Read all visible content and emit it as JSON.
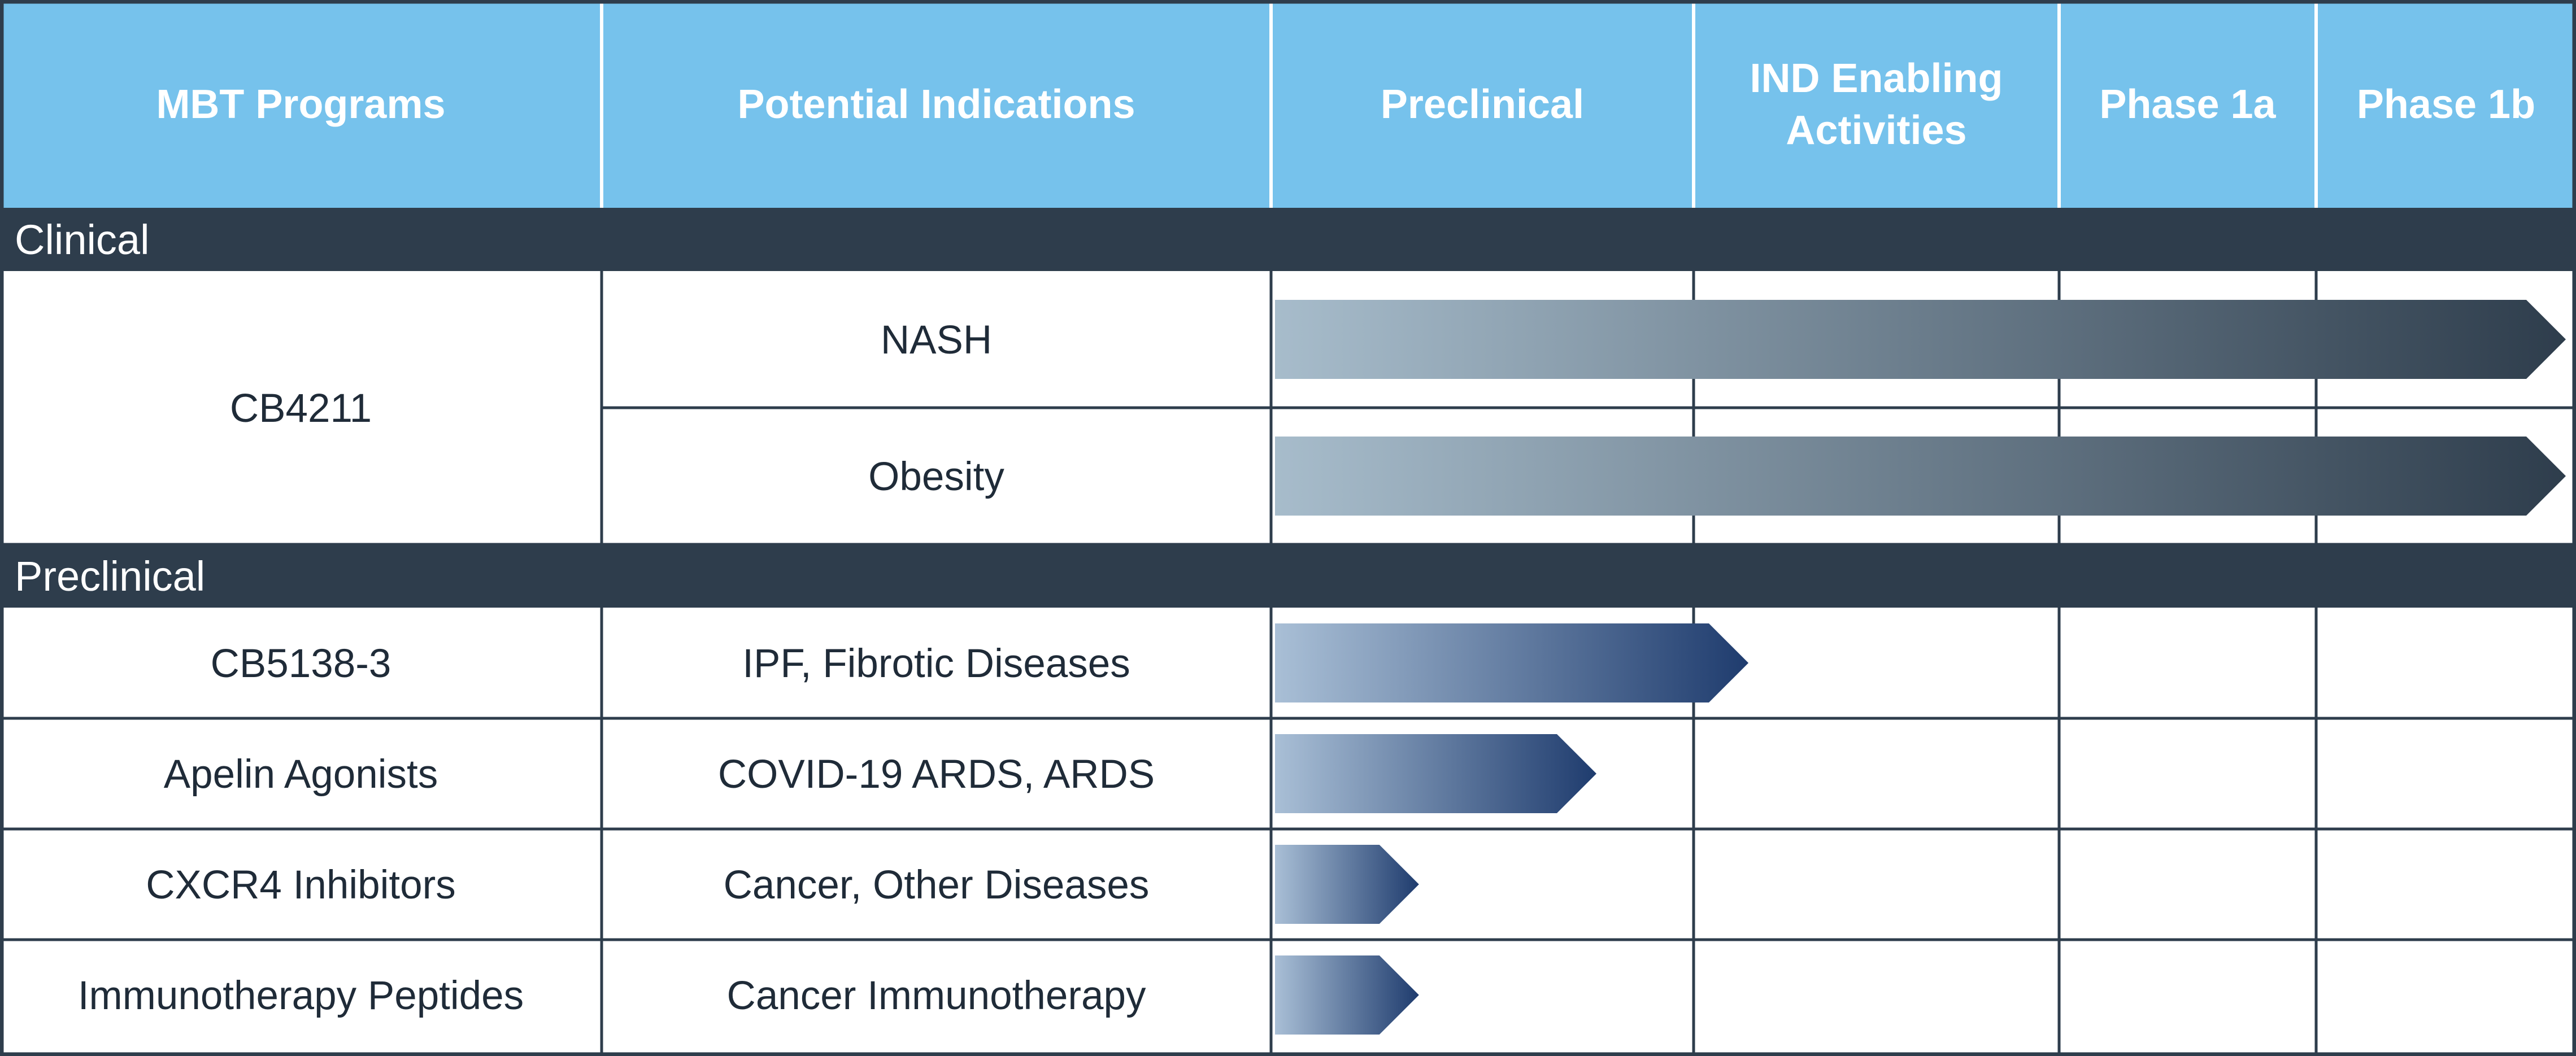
{
  "chart_data": {
    "type": "table",
    "columns": [
      {
        "lines": [
          "MBT Programs"
        ]
      },
      {
        "lines": [
          "Potential Indications"
        ]
      },
      {
        "lines": [
          "Preclinical"
        ]
      },
      {
        "lines": [
          "IND Enabling",
          "Activities"
        ]
      },
      {
        "lines": [
          "Phase 1a"
        ]
      },
      {
        "lines": [
          "Phase 1b"
        ]
      }
    ],
    "stages": [
      "Preclinical",
      "IND Enabling Activities",
      "Phase 1a",
      "Phase 1b"
    ],
    "sections": [
      {
        "label": "Clinical",
        "programs": [
          {
            "name": "CB4211",
            "indications": [
              {
                "label": "NASH",
                "progress_end_stage_index": 4.0
              },
              {
                "label": "Obesity",
                "progress_end_stage_index": 4.0
              }
            ]
          }
        ]
      },
      {
        "label": "Preclinical",
        "programs": [
          {
            "name": "CB5138-3",
            "indications": [
              {
                "label": "IPF, Fibrotic Diseases",
                "progress_end_stage_index": 1.15
              }
            ]
          },
          {
            "name": "Apelin Agonists",
            "indications": [
              {
                "label": "COVID-19 ARDS, ARDS",
                "progress_end_stage_index": 0.77
              }
            ]
          },
          {
            "name": "CXCR4 Inhibitors",
            "indications": [
              {
                "label": "Cancer, Other Diseases",
                "progress_end_stage_index": 0.35
              }
            ]
          },
          {
            "name": "Immunotherapy Peptides",
            "indications": [
              {
                "label": "Cancer Immunotherapy",
                "progress_end_stage_index": 0.35
              }
            ]
          }
        ]
      }
    ]
  },
  "colors": {
    "header_bg": "#76c2ec",
    "section_bg": "#2e3d4c",
    "grid_line": "#2e3d4c",
    "header_divider": "#ffffff",
    "bar_long_start": "#a7bccb",
    "bar_long_end": "#2e3d4c",
    "bar_short_start": "#a9bfd6",
    "bar_short_end": "#1f3c6e"
  }
}
